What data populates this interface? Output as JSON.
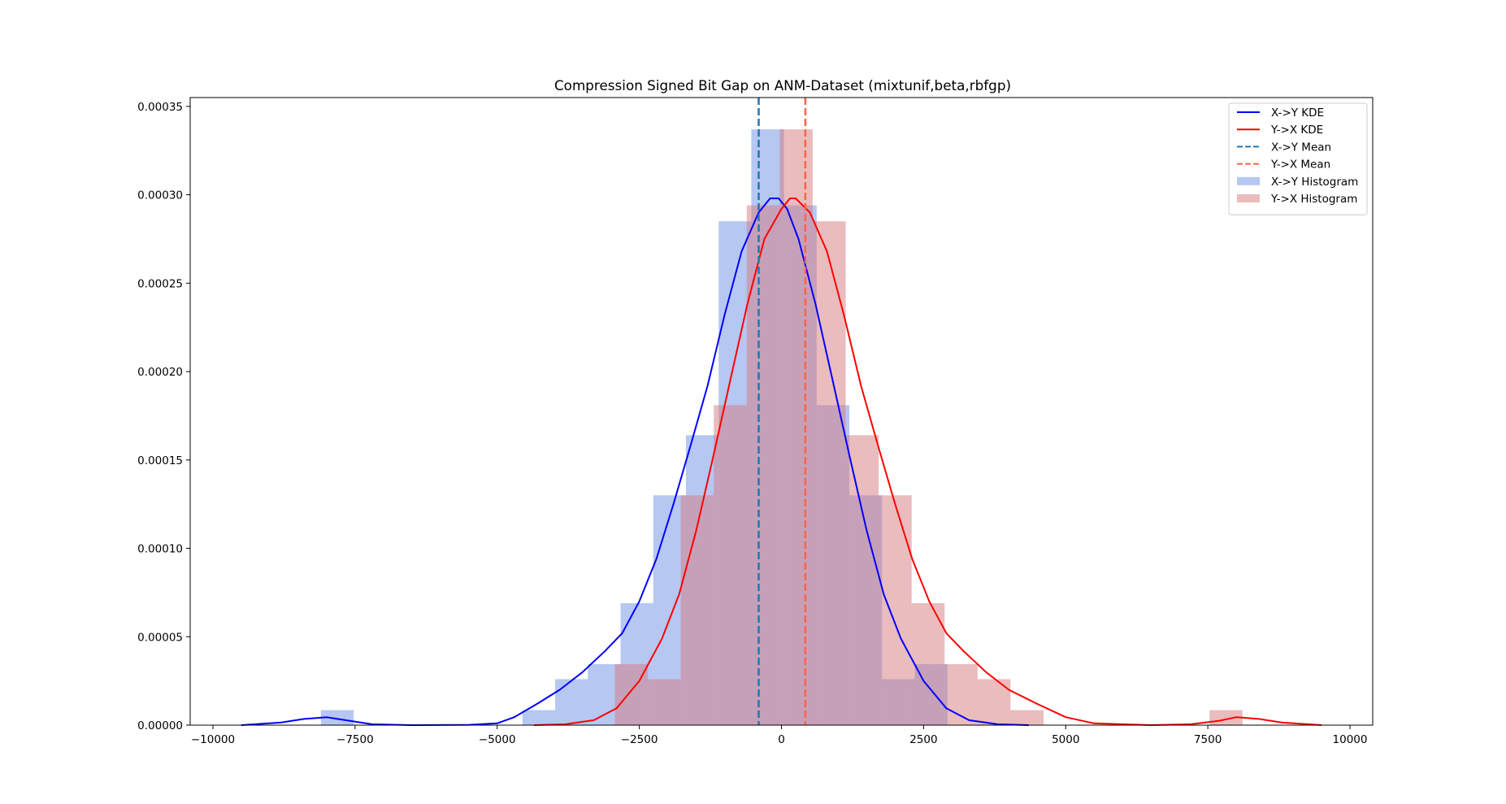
{
  "chart_data": {
    "type": "histogram+kde",
    "title": "Compression Signed Bit Gap on ANM-Dataset (mixtunif,beta,rbfgp)",
    "xlabel": "",
    "ylabel": "",
    "xlim": [
      -10400,
      10400
    ],
    "ylim": [
      0,
      0.000355
    ],
    "xticks": [
      -10000,
      -7500,
      -5000,
      -2500,
      0,
      2500,
      5000,
      7500,
      10000
    ],
    "xtick_labels": [
      "−10000",
      "−7500",
      "−5000",
      "−2500",
      "0",
      "2500",
      "5000",
      "7500",
      "10000"
    ],
    "yticks": [
      0,
      5e-05,
      0.0001,
      0.00015,
      0.0002,
      0.00025,
      0.0003,
      0.00035
    ],
    "ytick_labels": [
      "0.00000",
      "0.00005",
      "0.00010",
      "0.00015",
      "0.00020",
      "0.00025",
      "0.00030",
      "0.00035"
    ],
    "grid": false,
    "legend_position": "top-right",
    "histograms": [
      {
        "name": "X->Y Histogram",
        "color": "#6e8fe6",
        "bins": [
          [
            -8100,
            -7525,
            8.5e-06
          ],
          [
            -4555,
            -3980,
            8.5e-06
          ],
          [
            -3980,
            -3405,
            2.6e-05
          ],
          [
            -3405,
            -2830,
            3.45e-05
          ],
          [
            -2830,
            -2255,
            6.9e-05
          ],
          [
            -2255,
            -1680,
            0.00013
          ],
          [
            -1680,
            -1105,
            0.000164
          ],
          [
            -1105,
            -530,
            0.000285
          ],
          [
            -530,
            45,
            0.000337
          ],
          [
            45,
            620,
            0.000294
          ],
          [
            620,
            1195,
            0.000181
          ],
          [
            1195,
            1770,
            0.00013
          ],
          [
            1770,
            2345,
            2.6e-05
          ],
          [
            2345,
            2920,
            3.45e-05
          ]
        ]
      },
      {
        "name": "Y->X Histogram",
        "color": "#d57a7e",
        "bins": [
          [
            -2930,
            -2350,
            3.45e-05
          ],
          [
            -2350,
            -1770,
            2.6e-05
          ],
          [
            -1770,
            -1190,
            0.00013
          ],
          [
            -1190,
            -610,
            0.000181
          ],
          [
            -610,
            -30,
            0.000294
          ],
          [
            -30,
            550,
            0.000337
          ],
          [
            550,
            1130,
            0.000285
          ],
          [
            1130,
            1710,
            0.000164
          ],
          [
            1710,
            2290,
            0.00013
          ],
          [
            2290,
            2870,
            6.9e-05
          ],
          [
            2870,
            3450,
            3.45e-05
          ],
          [
            3450,
            4030,
            2.6e-05
          ],
          [
            4030,
            4610,
            8.5e-06
          ],
          [
            7530,
            8110,
            8.5e-06
          ]
        ]
      }
    ],
    "kde": [
      {
        "name": "X->Y KDE",
        "color": "#0000ff",
        "x": [
          -9500,
          -8800,
          -8400,
          -8000,
          -7600,
          -7200,
          -6500,
          -5500,
          -5000,
          -4700,
          -4300,
          -3900,
          -3500,
          -3100,
          -2800,
          -2500,
          -2200,
          -1900,
          -1600,
          -1300,
          -1000,
          -700,
          -400,
          -200,
          -50,
          100,
          300,
          600,
          900,
          1200,
          1500,
          1800,
          2100,
          2500,
          2900,
          3300,
          3800,
          4350
        ],
        "y": [
          0,
          1.5e-06,
          3.5e-06,
          4.5e-06,
          2.5e-06,
          5e-07,
          0,
          2e-07,
          1e-06,
          4.5e-06,
          1.2e-05,
          2e-05,
          3e-05,
          4.2e-05,
          5.2e-05,
          7e-05,
          9.4e-05,
          0.000125,
          0.000158,
          0.000192,
          0.000232,
          0.000268,
          0.00029,
          0.000298,
          0.000298,
          0.000292,
          0.000275,
          0.000238,
          0.000195,
          0.000152,
          0.00011,
          7.4e-05,
          4.9e-05,
          2.5e-05,
          9.5e-06,
          2.8e-06,
          5e-07,
          0
        ]
      },
      {
        "name": "Y->X KDE",
        "color": "#ff0000",
        "x": [
          -4350,
          -3800,
          -3300,
          -2900,
          -2500,
          -2100,
          -1800,
          -1500,
          -1200,
          -900,
          -600,
          -300,
          0,
          150,
          250,
          500,
          800,
          1100,
          1400,
          1700,
          2000,
          2300,
          2600,
          2900,
          3200,
          3600,
          4000,
          4500,
          5000,
          5500,
          6500,
          7200,
          7700,
          8000,
          8400,
          8800,
          9500
        ],
        "y": [
          0,
          5e-07,
          2.8e-06,
          9.5e-06,
          2.5e-05,
          4.9e-05,
          7.4e-05,
          0.00011,
          0.000152,
          0.000195,
          0.000238,
          0.000275,
          0.000292,
          0.000298,
          0.000298,
          0.00029,
          0.000268,
          0.000232,
          0.000192,
          0.000158,
          0.000125,
          9.4e-05,
          7e-05,
          5.2e-05,
          4.2e-05,
          3e-05,
          2e-05,
          1.2e-05,
          4.5e-06,
          1e-06,
          0,
          5e-07,
          2.5e-06,
          4.5e-06,
          3.5e-06,
          1.5e-06,
          0
        ]
      }
    ],
    "mean_lines": [
      {
        "name": "X->Y Mean",
        "color": "#1f77b4",
        "x": -400
      },
      {
        "name": "Y->X Mean",
        "color": "#ff6347",
        "x": 420
      }
    ],
    "legend": [
      {
        "label": "X->Y KDE",
        "kind": "line",
        "color": "#0000ff"
      },
      {
        "label": "Y->X KDE",
        "kind": "line",
        "color": "#ff0000"
      },
      {
        "label": "X->Y Mean",
        "kind": "dashed",
        "color": "#1f77b4"
      },
      {
        "label": "Y->X Mean",
        "kind": "dashed",
        "color": "#ff6347"
      },
      {
        "label": "X->Y Histogram",
        "kind": "patch",
        "color": "#6e8fe6"
      },
      {
        "label": "Y->X Histogram",
        "kind": "patch",
        "color": "#d57a7e"
      }
    ]
  }
}
